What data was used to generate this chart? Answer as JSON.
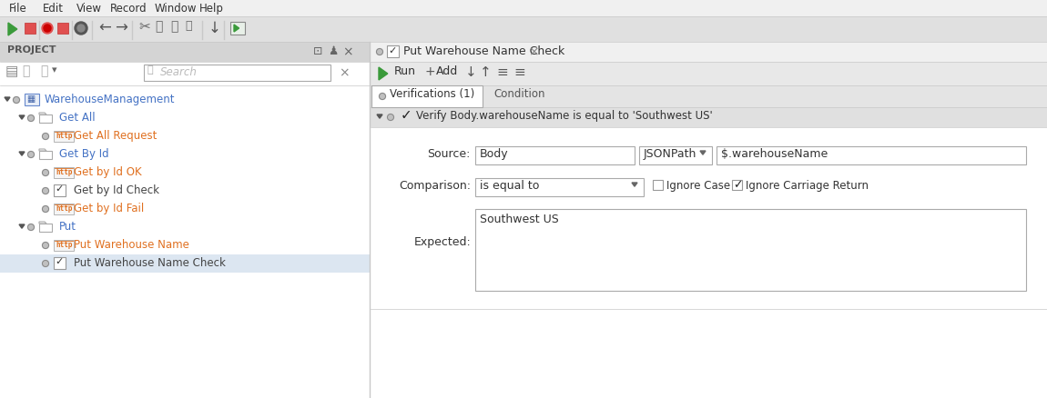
{
  "bg_color": "#e8e8e8",
  "white": "#ffffff",
  "light_gray": "#f0f0f0",
  "mid_gray": "#c8c8c8",
  "dark_gray": "#888888",
  "text_dark": "#222222",
  "text_color": "#444444",
  "blue_text": "#4472c4",
  "green_color": "#3a9a3a",
  "orange_color": "#e07020",
  "selected_row_bg": "#dce6f1",
  "border_color": "#aaaaaa",
  "panel_divider": "#cccccc",
  "menubar_bg": "#f0f0f0",
  "toolbar_bg": "#e0e0e0",
  "panel_header_bg": "#d4d4d4",
  "toolbar2_bg": "#e8e8e8",
  "verif_row_bg": "#e0e0e0",
  "tab_bar_bg": "#e4e4e4",
  "form_bg": "#f8f8f8",
  "menu_items": [
    "File",
    "Edit",
    "View",
    "Record",
    "Window",
    "Help"
  ],
  "project_label": "PROJECT",
  "tree_items": [
    {
      "label": "WarehouseManagement",
      "level": 0,
      "type": "project",
      "expanded": true
    },
    {
      "label": "Get All",
      "level": 1,
      "type": "folder",
      "expanded": true
    },
    {
      "label": "Get All Request",
      "level": 2,
      "type": "http"
    },
    {
      "label": "Get By Id",
      "level": 1,
      "type": "folder",
      "expanded": true
    },
    {
      "label": "Get by Id OK",
      "level": 2,
      "type": "http"
    },
    {
      "label": "Get by Id Check",
      "level": 2,
      "type": "check"
    },
    {
      "label": "Get by Id Fail",
      "level": 2,
      "type": "http"
    },
    {
      "label": "Put",
      "level": 1,
      "type": "folder",
      "expanded": true
    },
    {
      "label": "Put Warehouse Name",
      "level": 2,
      "type": "http"
    },
    {
      "label": "Put Warehouse Name Check",
      "level": 2,
      "type": "check",
      "selected": true
    }
  ],
  "tab_title": "Put Warehouse Name Check",
  "verif_summary": "Verify Body.warehouseName is equal to 'Southwest US'",
  "source_label": "Source:",
  "source_value": "Body",
  "jsonpath_label": "JSONPath",
  "path_value": "$.warehouseName",
  "comparison_label": "Comparison:",
  "comparison_value": "is equal to",
  "ignore_case_checked": false,
  "ignore_carriage_return_checked": true,
  "expected_label": "Expected:",
  "expected_value": "Southwest US",
  "verif_tab": "Verifications (1)",
  "condition_tab": "Condition"
}
